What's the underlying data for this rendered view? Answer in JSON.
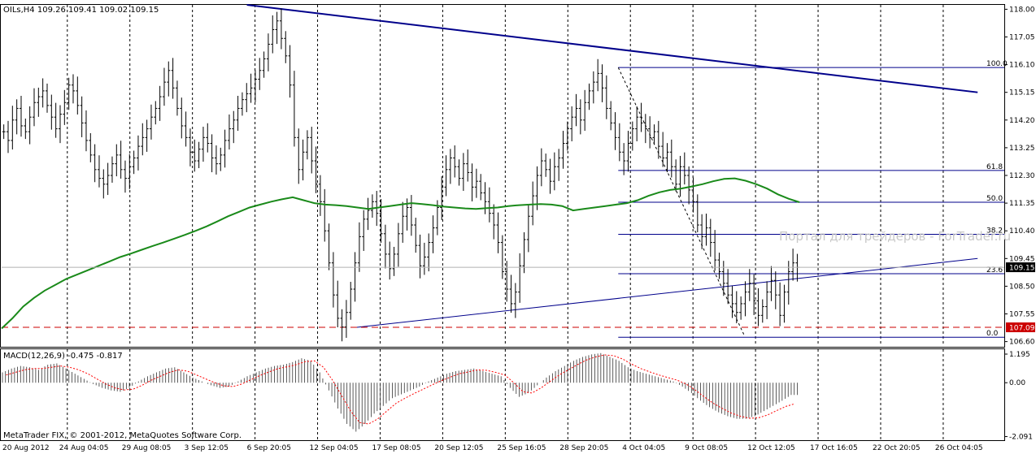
{
  "header": {
    "symbol_info": "OILs,H4  109.26 109.41 109.02 109.15"
  },
  "macd_header": "MACD(12,26,9) -0.475 -0.817",
  "copyright": "MetaTrader FIX, © 2001-2012, MetaQuotes Software Corp.",
  "watermark": "Портал для трейдеров - ForTrader.ru",
  "colors": {
    "ma": "#1a8a1a",
    "trendline": "#00008b",
    "fibo": "#00008b",
    "level_line": "#cc0000",
    "price_tag_current": "#000000",
    "price_tag_level": "#cc0000"
  },
  "chart_data": {
    "type": "line",
    "title": "",
    "xlabel": "",
    "ylabel": "",
    "price_axis_ticks": [
      "118.00",
      "117.05",
      "116.10",
      "115.15",
      "114.20",
      "113.25",
      "112.30",
      "111.35",
      "110.40",
      "109.45",
      "108.50",
      "107.55",
      "106.60"
    ],
    "price_range": [
      106.45,
      118.15
    ],
    "x_tick_labels": [
      "20 Aug 2012",
      "24 Aug 04:05",
      "29 Aug 08:05",
      "3 Sep 12:05",
      "6 Sep 20:05",
      "12 Sep 04:05",
      "17 Sep 08:05",
      "20 Sep 12:05",
      "25 Sep 16:05",
      "28 Sep 20:05",
      "4 Oct 04:05",
      "9 Oct 08:05",
      "12 Oct 12:05",
      "17 Oct 16:05",
      "22 Oct 20:05",
      "26 Oct 04:05"
    ],
    "current_price": "109.15",
    "level_price": "107.09",
    "fibonacci": {
      "high": 116.0,
      "low": 106.75,
      "levels": [
        {
          "label": "100.0",
          "value": 116.0
        },
        {
          "label": "61.8",
          "value": 112.47
        },
        {
          "label": "50.0",
          "value": 111.38
        },
        {
          "label": "38.2",
          "value": 110.28
        },
        {
          "label": "23.6",
          "value": 108.93
        },
        {
          "label": "0.0",
          "value": 106.75
        }
      ]
    },
    "trendlines": [
      {
        "name": "descending",
        "from": [
          0.245,
          118.15
        ],
        "to": [
          0.975,
          115.15
        ]
      },
      {
        "name": "ascending",
        "from": [
          0.355,
          107.09
        ],
        "to": [
          0.975,
          109.45
        ]
      }
    ],
    "price_closes": [
      113.8,
      113.5,
      114.2,
      114.6,
      114.0,
      113.8,
      114.3,
      114.8,
      115.0,
      115.2,
      114.7,
      114.3,
      113.9,
      114.4,
      114.8,
      115.4,
      115.2,
      114.7,
      114.1,
      113.5,
      113.0,
      112.5,
      112.2,
      112.0,
      112.3,
      112.7,
      113.0,
      112.5,
      112.2,
      112.6,
      112.9,
      113.3,
      113.6,
      113.9,
      114.3,
      114.6,
      115.0,
      115.5,
      115.9,
      115.3,
      114.6,
      114.0,
      113.6,
      113.1,
      112.8,
      113.2,
      113.6,
      113.4,
      112.9,
      112.7,
      113.0,
      113.5,
      113.9,
      114.2,
      114.6,
      114.9,
      115.1,
      115.3,
      115.6,
      115.9,
      116.3,
      116.8,
      117.3,
      117.6,
      117.0,
      116.4,
      115.4,
      113.6,
      112.5,
      113.1,
      113.6,
      112.8,
      112.0,
      111.4,
      110.4,
      109.3,
      108.2,
      107.4,
      107.1,
      107.6,
      108.4,
      109.3,
      110.2,
      110.8,
      111.1,
      111.4,
      111.0,
      110.3,
      109.6,
      109.1,
      109.6,
      110.3,
      110.9,
      111.2,
      110.6,
      109.9,
      109.2,
      109.5,
      110.0,
      110.5,
      111.2,
      111.9,
      112.5,
      112.9,
      112.6,
      112.2,
      112.7,
      112.4,
      111.9,
      112.1,
      111.7,
      111.4,
      111.0,
      110.6,
      110.0,
      109.0,
      108.4,
      107.9,
      108.3,
      109.2,
      110.1,
      110.9,
      111.6,
      112.3,
      112.8,
      112.5,
      112.1,
      112.6,
      112.9,
      113.4,
      113.9,
      114.3,
      114.6,
      114.2,
      114.8,
      115.2,
      115.5,
      115.8,
      115.3,
      114.6,
      114.1,
      113.6,
      113.1,
      112.8,
      113.4,
      113.9,
      114.3,
      114.1,
      113.9,
      113.6,
      113.8,
      113.3,
      112.9,
      113.1,
      112.6,
      112.0,
      112.6,
      112.3,
      111.8,
      111.4,
      110.6,
      110.2,
      110.5,
      110.0,
      109.4,
      109.0,
      108.6,
      108.2,
      107.9,
      107.6,
      107.9,
      108.3,
      108.6,
      108.0,
      107.5,
      107.8,
      108.3,
      108.7,
      108.2,
      107.5,
      108.3,
      109.0,
      109.3,
      109.15
    ],
    "ma_values": [
      107.05,
      107.4,
      107.8,
      108.1,
      108.35,
      108.55,
      108.75,
      108.9,
      109.05,
      109.2,
      109.35,
      109.5,
      109.62,
      109.75,
      109.88,
      110.0,
      110.13,
      110.26,
      110.4,
      110.55,
      110.72,
      110.9,
      111.05,
      111.2,
      111.3,
      111.4,
      111.48,
      111.55,
      111.45,
      111.35,
      111.3,
      111.28,
      111.25,
      111.2,
      111.15,
      111.2,
      111.25,
      111.3,
      111.35,
      111.32,
      111.28,
      111.23,
      111.2,
      111.17,
      111.15,
      111.18,
      111.2,
      111.25,
      111.28,
      111.3,
      111.32,
      111.3,
      111.25,
      111.1,
      111.15,
      111.2,
      111.25,
      111.3,
      111.35,
      111.45,
      111.6,
      111.72,
      111.8,
      111.85,
      111.92,
      112.0,
      112.1,
      112.18,
      112.2,
      112.12,
      112.0,
      111.85,
      111.65,
      111.5,
      111.38
    ],
    "series": [
      {
        "name": "MACD(12,26,9)",
        "values": [
          0.4,
          0.55,
          0.65,
          0.6,
          0.5,
          0.7,
          0.75,
          0.55,
          0.35,
          0.15,
          -0.05,
          -0.2,
          -0.3,
          -0.35,
          -0.2,
          0.05,
          0.25,
          0.4,
          0.55,
          0.6,
          0.4,
          0.2,
          0.05,
          -0.1,
          -0.2,
          -0.15,
          0.05,
          0.25,
          0.4,
          0.55,
          0.65,
          0.7,
          0.8,
          0.95,
          0.85,
          0.4,
          -0.3,
          -1.0,
          -1.6,
          -1.9,
          -1.6,
          -1.2,
          -0.9,
          -0.6,
          -0.45,
          -0.3,
          -0.15,
          0.05,
          0.2,
          0.35,
          0.45,
          0.5,
          0.55,
          0.45,
          0.35,
          0.25,
          -0.2,
          -0.55,
          -0.4,
          -0.1,
          0.2,
          0.45,
          0.65,
          0.85,
          1.0,
          1.1,
          1.15,
          1.0,
          0.85,
          0.6,
          0.45,
          0.35,
          0.25,
          0.15,
          0.05,
          -0.15,
          -0.4,
          -0.7,
          -0.95,
          -1.15,
          -1.3,
          -1.4,
          -1.4,
          -1.3,
          -1.1,
          -0.9,
          -0.7,
          -0.475
        ]
      },
      {
        "name": "Signal",
        "values": [
          0.3,
          0.4,
          0.5,
          0.55,
          0.55,
          0.6,
          0.65,
          0.6,
          0.5,
          0.35,
          0.15,
          -0.05,
          -0.2,
          -0.28,
          -0.25,
          -0.1,
          0.1,
          0.25,
          0.4,
          0.5,
          0.45,
          0.3,
          0.15,
          0.0,
          -0.12,
          -0.15,
          -0.05,
          0.12,
          0.28,
          0.42,
          0.55,
          0.62,
          0.7,
          0.82,
          0.85,
          0.6,
          0.1,
          -0.5,
          -1.1,
          -1.55,
          -1.6,
          -1.4,
          -1.1,
          -0.8,
          -0.6,
          -0.42,
          -0.25,
          -0.08,
          0.08,
          0.22,
          0.35,
          0.42,
          0.5,
          0.48,
          0.4,
          0.3,
          0.0,
          -0.35,
          -0.4,
          -0.2,
          0.05,
          0.3,
          0.5,
          0.7,
          0.88,
          1.0,
          1.08,
          1.05,
          0.92,
          0.72,
          0.55,
          0.42,
          0.3,
          0.2,
          0.1,
          -0.05,
          -0.28,
          -0.55,
          -0.8,
          -1.0,
          -1.18,
          -1.3,
          -1.38,
          -1.36,
          -1.25,
          -1.08,
          -0.92,
          -0.817
        ]
      }
    ],
    "macd_axis_ticks": [
      "1.195",
      "0.00",
      "-2.091"
    ],
    "macd_range": [
      -2.2,
      1.3
    ],
    "grid": true
  }
}
